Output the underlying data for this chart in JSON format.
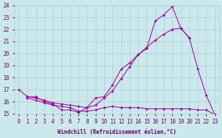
{
  "xlabel": "Windchill (Refroidissement éolien,°C)",
  "ylim": [
    15,
    24
  ],
  "xlim": [
    -0.5,
    23.5
  ],
  "bg_color": "#cce8ec",
  "line_color": "#990099",
  "grid_color": "#aacccc",
  "tick_label_color": "#660066",
  "xlabel_color": "#660066",
  "line1_x": [
    0,
    1,
    2,
    3,
    4,
    5,
    6,
    7,
    8,
    9,
    10,
    11,
    12,
    13,
    14,
    15,
    16,
    17,
    18,
    19,
    20,
    21,
    22,
    23
  ],
  "line1_y": [
    17.0,
    16.4,
    16.4,
    16.0,
    15.8,
    15.3,
    15.3,
    15.1,
    15.5,
    16.3,
    16.4,
    17.4,
    18.7,
    19.2,
    19.9,
    20.4,
    22.7,
    23.2,
    23.9,
    22.1,
    21.3,
    18.7,
    16.5,
    14.9
  ],
  "line2_x": [
    1,
    2,
    3,
    4,
    5,
    6,
    7,
    8,
    9,
    10,
    11,
    12,
    13,
    14,
    15,
    16,
    17,
    18,
    19,
    20
  ],
  "line2_y": [
    16.4,
    16.3,
    16.1,
    15.9,
    15.8,
    15.7,
    15.6,
    15.5,
    15.7,
    16.3,
    16.9,
    17.9,
    18.9,
    19.9,
    20.5,
    21.1,
    21.6,
    22.0,
    22.1,
    21.3
  ],
  "line3_x": [
    1,
    2,
    3,
    4,
    5,
    6,
    7,
    8,
    9,
    10,
    11,
    12,
    13,
    14,
    15,
    16,
    17,
    18,
    19,
    20,
    21,
    22,
    23
  ],
  "line3_y": [
    16.3,
    16.1,
    15.9,
    15.7,
    15.6,
    15.5,
    15.2,
    15.2,
    15.3,
    15.5,
    15.6,
    15.5,
    15.5,
    15.5,
    15.4,
    15.4,
    15.4,
    15.4,
    15.4,
    15.4,
    15.3,
    15.3,
    14.9
  ]
}
